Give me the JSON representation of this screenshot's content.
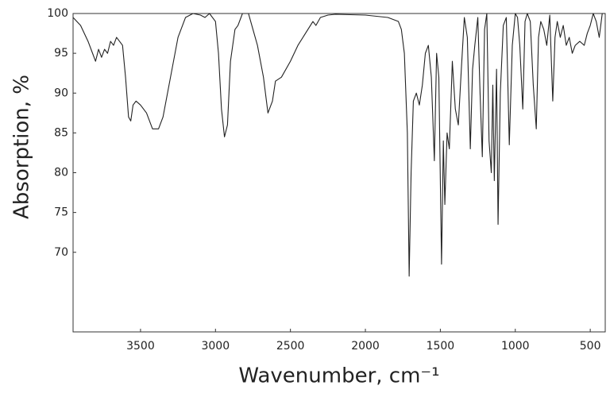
{
  "chart_data": {
    "type": "line",
    "xlabel": "Wavenumber, cm⁻¹",
    "ylabel": "Absorption, %",
    "color": "#222222",
    "log_scale": false,
    "grid": false,
    "xlim": [
      3950,
      400
    ],
    "ylim": [
      60,
      100
    ],
    "xticks": [
      3500,
      3000,
      2500,
      2000,
      1500,
      1000,
      500
    ],
    "yticks": [
      70,
      75,
      80,
      85,
      90,
      95,
      100
    ],
    "x": [
      3950,
      3900,
      3850,
      3820,
      3800,
      3780,
      3760,
      3740,
      3720,
      3700,
      3680,
      3660,
      3640,
      3620,
      3600,
      3580,
      3565,
      3550,
      3530,
      3500,
      3460,
      3420,
      3380,
      3350,
      3300,
      3250,
      3200,
      3150,
      3100,
      3070,
      3040,
      3000,
      2980,
      2960,
      2940,
      2920,
      2900,
      2870,
      2850,
      2820,
      2780,
      2750,
      2720,
      2680,
      2650,
      2620,
      2600,
      2560,
      2500,
      2450,
      2400,
      2350,
      2330,
      2300,
      2250,
      2200,
      2000,
      1850,
      1780,
      1760,
      1740,
      1720,
      1708,
      1695,
      1680,
      1660,
      1640,
      1620,
      1600,
      1580,
      1560,
      1540,
      1525,
      1510,
      1492,
      1480,
      1470,
      1455,
      1440,
      1420,
      1400,
      1380,
      1360,
      1340,
      1320,
      1300,
      1285,
      1270,
      1250,
      1235,
      1220,
      1205,
      1190,
      1175,
      1160,
      1150,
      1140,
      1125,
      1115,
      1100,
      1080,
      1060,
      1040,
      1020,
      1000,
      985,
      970,
      950,
      935,
      920,
      900,
      880,
      860,
      845,
      830,
      810,
      790,
      770,
      750,
      735,
      720,
      700,
      680,
      660,
      640,
      620,
      600,
      570,
      540,
      520,
      500,
      480,
      460,
      440,
      420,
      400
    ],
    "values": [
      99.5,
      98.5,
      96.5,
      95,
      94,
      95.5,
      94.5,
      95.5,
      95,
      96.5,
      96,
      97,
      96.5,
      96,
      92,
      87,
      86.5,
      88.5,
      89,
      88.5,
      87.5,
      85.5,
      85.5,
      87,
      92,
      97,
      99.5,
      100,
      99.8,
      99.5,
      100,
      99,
      95,
      88,
      84.5,
      86,
      94,
      98,
      98.5,
      100,
      100,
      98,
      96,
      92,
      87.5,
      89,
      91.5,
      92,
      94,
      96,
      97.5,
      99,
      98.5,
      99.5,
      99.8,
      99.9,
      99.8,
      99.5,
      99,
      98,
      95,
      85,
      67,
      80,
      89,
      90,
      88.5,
      91,
      95,
      96,
      92,
      81.5,
      95,
      92,
      68.5,
      84,
      76,
      85,
      83,
      94,
      88,
      86,
      93,
      99.5,
      97,
      83,
      93,
      96,
      99.5,
      90,
      82,
      98,
      100,
      84,
      80,
      91,
      79,
      93,
      73.5,
      90,
      98.5,
      99.5,
      83.5,
      96,
      100,
      99.5,
      96,
      88,
      99,
      100,
      99,
      91,
      85.5,
      97,
      99,
      98,
      96,
      99.8,
      89,
      97,
      99,
      97,
      98.5,
      96,
      97,
      95,
      96,
      96.5,
      96,
      97.5,
      98.5,
      100,
      99,
      97,
      100,
      100
    ]
  }
}
